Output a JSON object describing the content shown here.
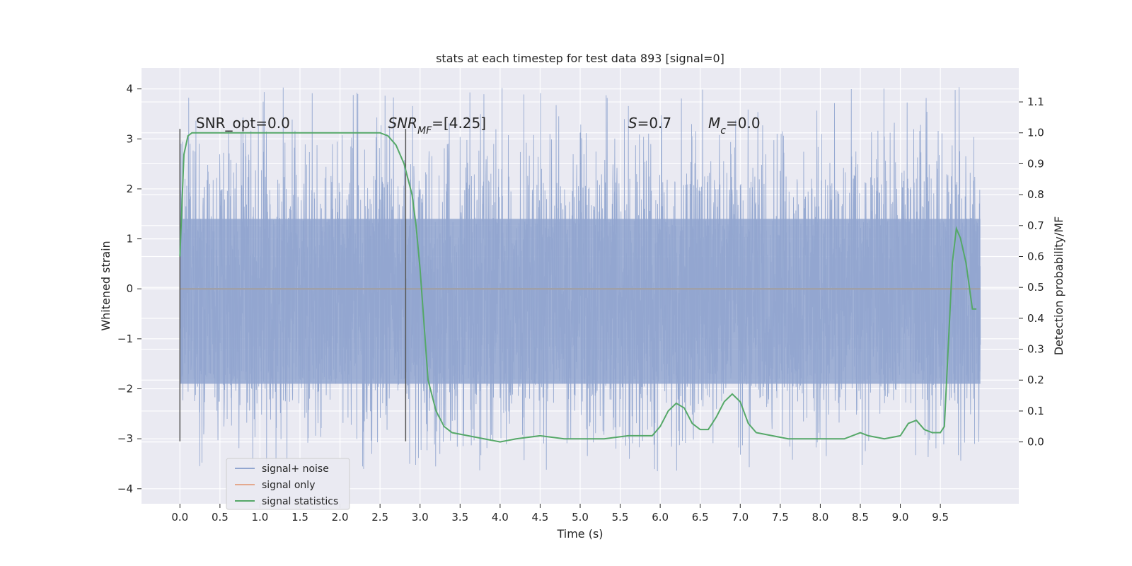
{
  "chart_data": {
    "type": "line",
    "title": "stats at each timestep for test data 893 [signal=0]",
    "xlabel": "Time (s)",
    "ylabel_left": "Whitened strain",
    "ylabel_right": "Detection probability/MF",
    "xlim": [
      -0.48,
      10.48
    ],
    "ylim_left": [
      -4.3,
      4.42
    ],
    "ylim_right": [
      -0.2,
      1.21
    ],
    "x_ticks": [
      "0.0",
      "0.5",
      "1.0",
      "1.5",
      "2.0",
      "2.5",
      "3.0",
      "3.5",
      "4.0",
      "4.5",
      "5.0",
      "5.5",
      "6.0",
      "6.5",
      "7.0",
      "7.5",
      "8.0",
      "8.5",
      "9.0",
      "9.5"
    ],
    "y_ticks_left": [
      "−4",
      "−3",
      "−2",
      "−1",
      "0",
      "1",
      "2",
      "3",
      "4"
    ],
    "y_ticks_right": [
      "0.0",
      "0.1",
      "0.2",
      "0.3",
      "0.4",
      "0.5",
      "0.6",
      "0.7",
      "0.8",
      "0.9",
      "1.0",
      "1.1"
    ],
    "grid": true,
    "legend_position": "lower-left",
    "series": [
      {
        "name": "signal+ noise",
        "axis": "left",
        "color": "#92a6d0",
        "description_values": {
          "x_range": [
            0.0,
            10.0
          ],
          "core_band": [
            -1.9,
            1.4
          ],
          "max_peak": 4.05,
          "min_trough": -3.65
        }
      },
      {
        "name": "signal only",
        "axis": "left",
        "color": "#e4a98f",
        "x": [
          0.0,
          10.0
        ],
        "y": [
          0.0,
          0.0
        ]
      },
      {
        "name": "signal statistics",
        "axis": "right",
        "color": "#55a868",
        "x": [
          0.0,
          0.05,
          0.1,
          0.15,
          0.25,
          0.5,
          1.0,
          1.5,
          2.0,
          2.3,
          2.5,
          2.6,
          2.7,
          2.8,
          2.9,
          2.95,
          3.0,
          3.05,
          3.1,
          3.2,
          3.3,
          3.4,
          3.6,
          3.8,
          4.0,
          4.2,
          4.5,
          4.8,
          5.0,
          5.3,
          5.6,
          5.9,
          6.0,
          6.1,
          6.2,
          6.3,
          6.4,
          6.5,
          6.6,
          6.7,
          6.8,
          6.9,
          7.0,
          7.1,
          7.2,
          7.4,
          7.6,
          7.8,
          8.0,
          8.3,
          8.5,
          8.6,
          8.8,
          9.0,
          9.1,
          9.2,
          9.3,
          9.4,
          9.5,
          9.55,
          9.65,
          9.7,
          9.75,
          9.82,
          9.9,
          9.95
        ],
        "y": [
          0.6,
          0.93,
          0.99,
          1.0,
          1.0,
          1.0,
          1.0,
          1.0,
          1.0,
          1.0,
          1.0,
          0.99,
          0.96,
          0.9,
          0.8,
          0.7,
          0.56,
          0.38,
          0.2,
          0.1,
          0.05,
          0.03,
          0.02,
          0.01,
          0.0,
          0.01,
          0.02,
          0.01,
          0.01,
          0.01,
          0.02,
          0.02,
          0.05,
          0.1,
          0.125,
          0.11,
          0.06,
          0.04,
          0.04,
          0.08,
          0.13,
          0.155,
          0.13,
          0.06,
          0.03,
          0.02,
          0.01,
          0.01,
          0.01,
          0.01,
          0.03,
          0.02,
          0.01,
          0.02,
          0.06,
          0.07,
          0.04,
          0.03,
          0.03,
          0.05,
          0.58,
          0.69,
          0.66,
          0.58,
          0.43,
          0.43
        ]
      }
    ],
    "annotations": [
      {
        "id": "snr_opt",
        "x": 0.2,
        "y": 3.22,
        "parts": [
          {
            "text": "SNR_opt=0.0"
          }
        ]
      },
      {
        "id": "snr_mf",
        "x": 2.6,
        "y": 3.22,
        "parts": [
          {
            "text": "SNR",
            "italic": true
          },
          {
            "text": "MF",
            "italic": true,
            "sub": true
          },
          {
            "text": "=[4.25]"
          }
        ]
      },
      {
        "id": "s",
        "x": 5.6,
        "y": 3.22,
        "parts": [
          {
            "text": "S",
            "italic": true
          },
          {
            "text": "=0.7"
          }
        ]
      },
      {
        "id": "mc",
        "x": 6.6,
        "y": 3.22,
        "parts": [
          {
            "text": "M",
            "italic": true
          },
          {
            "text": "c",
            "italic": true,
            "sub": true
          },
          {
            "text": "=0.0"
          }
        ]
      }
    ],
    "marker_lines": [
      {
        "x": 0.0,
        "y_range": [
          -3.05,
          3.2
        ]
      },
      {
        "x": 2.82,
        "y_range": [
          -3.05,
          3.2
        ]
      }
    ],
    "legend": [
      "signal+ noise",
      "signal only",
      "signal statistics"
    ]
  }
}
